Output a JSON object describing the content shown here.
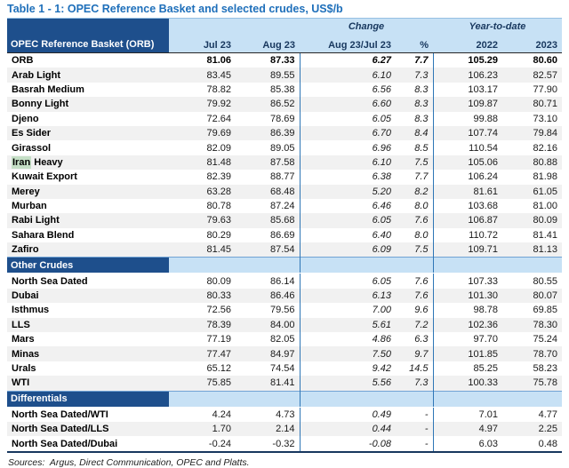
{
  "title": "Table 1 - 1: OPEC Reference Basket and selected crudes, US$/b",
  "sources": "Sources:  Argus, Direct Communication, OPEC and Platts.",
  "colors": {
    "title_blue": "#1e6fba",
    "header_dark_blue": "#1e4f8c",
    "header_light_blue": "#c7e1f5",
    "header_text_navy": "#17375e",
    "column_divider_blue": "#2e76b6",
    "row_stripe_gray": "#f1f1f1",
    "search_highlight_green": "#c5dfc6",
    "bottom_border_navy": "#17375e"
  },
  "table": {
    "corner_label": "OPEC Reference Basket (ORB)",
    "group_headers": {
      "change": "Change",
      "ytd": "Year-to-date"
    },
    "columns": [
      "Jul 23",
      "Aug 23",
      "Aug 23/Jul 23",
      "%",
      "2022",
      "2023"
    ],
    "column_keys": [
      "jul23",
      "aug23",
      "change",
      "change-pct",
      "ytd-2022",
      "ytd-2023"
    ],
    "sections": [
      {
        "id": "orb",
        "header": null,
        "rows": [
          {
            "label": "ORB",
            "bold": true,
            "values": [
              "81.06",
              "87.33",
              "6.27",
              "7.7",
              "105.29",
              "80.60"
            ]
          },
          {
            "label": "Arab Light",
            "values": [
              "83.45",
              "89.55",
              "6.10",
              "7.3",
              "106.23",
              "82.57"
            ]
          },
          {
            "label": "Basrah Medium",
            "values": [
              "78.82",
              "85.38",
              "6.56",
              "8.3",
              "103.17",
              "77.90"
            ]
          },
          {
            "label": "Bonny Light",
            "values": [
              "79.92",
              "86.52",
              "6.60",
              "8.3",
              "109.87",
              "80.71"
            ]
          },
          {
            "label": "Djeno",
            "values": [
              "72.64",
              "78.69",
              "6.05",
              "8.3",
              "99.88",
              "73.10"
            ]
          },
          {
            "label": "Es Sider",
            "values": [
              "79.69",
              "86.39",
              "6.70",
              "8.4",
              "107.74",
              "79.84"
            ]
          },
          {
            "label": "Girassol",
            "values": [
              "82.09",
              "89.05",
              "6.96",
              "8.5",
              "110.54",
              "82.16"
            ]
          },
          {
            "label": "Iran Heavy",
            "highlight": "Iran",
            "values": [
              "81.48",
              "87.58",
              "6.10",
              "7.5",
              "105.06",
              "80.88"
            ]
          },
          {
            "label": "Kuwait Export",
            "values": [
              "82.39",
              "88.77",
              "6.38",
              "7.7",
              "106.24",
              "81.98"
            ]
          },
          {
            "label": "Merey",
            "values": [
              "63.28",
              "68.48",
              "5.20",
              "8.2",
              "81.61",
              "61.05"
            ]
          },
          {
            "label": "Murban",
            "values": [
              "80.78",
              "87.24",
              "6.46",
              "8.0",
              "103.68",
              "81.00"
            ]
          },
          {
            "label": "Rabi Light",
            "values": [
              "79.63",
              "85.68",
              "6.05",
              "7.6",
              "106.87",
              "80.09"
            ]
          },
          {
            "label": "Sahara Blend",
            "values": [
              "80.29",
              "86.69",
              "6.40",
              "8.0",
              "110.72",
              "81.41"
            ]
          },
          {
            "label": "Zafiro",
            "values": [
              "81.45",
              "87.54",
              "6.09",
              "7.5",
              "109.71",
              "81.13"
            ]
          }
        ]
      },
      {
        "id": "other-crudes",
        "header": "Other Crudes",
        "rows": [
          {
            "label": "North Sea Dated",
            "values": [
              "80.09",
              "86.14",
              "6.05",
              "7.6",
              "107.33",
              "80.55"
            ]
          },
          {
            "label": "Dubai",
            "values": [
              "80.33",
              "86.46",
              "6.13",
              "7.6",
              "101.30",
              "80.07"
            ]
          },
          {
            "label": "Isthmus",
            "values": [
              "72.56",
              "79.56",
              "7.00",
              "9.6",
              "98.78",
              "69.85"
            ]
          },
          {
            "label": "LLS",
            "values": [
              "78.39",
              "84.00",
              "5.61",
              "7.2",
              "102.36",
              "78.30"
            ]
          },
          {
            "label": "Mars",
            "values": [
              "77.19",
              "82.05",
              "4.86",
              "6.3",
              "97.70",
              "75.24"
            ]
          },
          {
            "label": "Minas",
            "values": [
              "77.47",
              "84.97",
              "7.50",
              "9.7",
              "101.85",
              "78.70"
            ]
          },
          {
            "label": "Urals",
            "values": [
              "65.12",
              "74.54",
              "9.42",
              "14.5",
              "85.25",
              "58.23"
            ]
          },
          {
            "label": "WTI",
            "values": [
              "75.85",
              "81.41",
              "5.56",
              "7.3",
              "100.33",
              "75.78"
            ]
          }
        ]
      },
      {
        "id": "differentials",
        "header": "Differentials",
        "rows": [
          {
            "label": "North Sea Dated/WTI",
            "values": [
              "4.24",
              "4.73",
              "0.49",
              "-",
              "7.01",
              "4.77"
            ]
          },
          {
            "label": "North Sea Dated/LLS",
            "values": [
              "1.70",
              "2.14",
              "0.44",
              "-",
              "4.97",
              "2.25"
            ]
          },
          {
            "label": "North Sea Dated/Dubai",
            "values": [
              "-0.24",
              "-0.32",
              "-0.08",
              "-",
              "6.03",
              "0.48"
            ]
          }
        ]
      }
    ]
  }
}
